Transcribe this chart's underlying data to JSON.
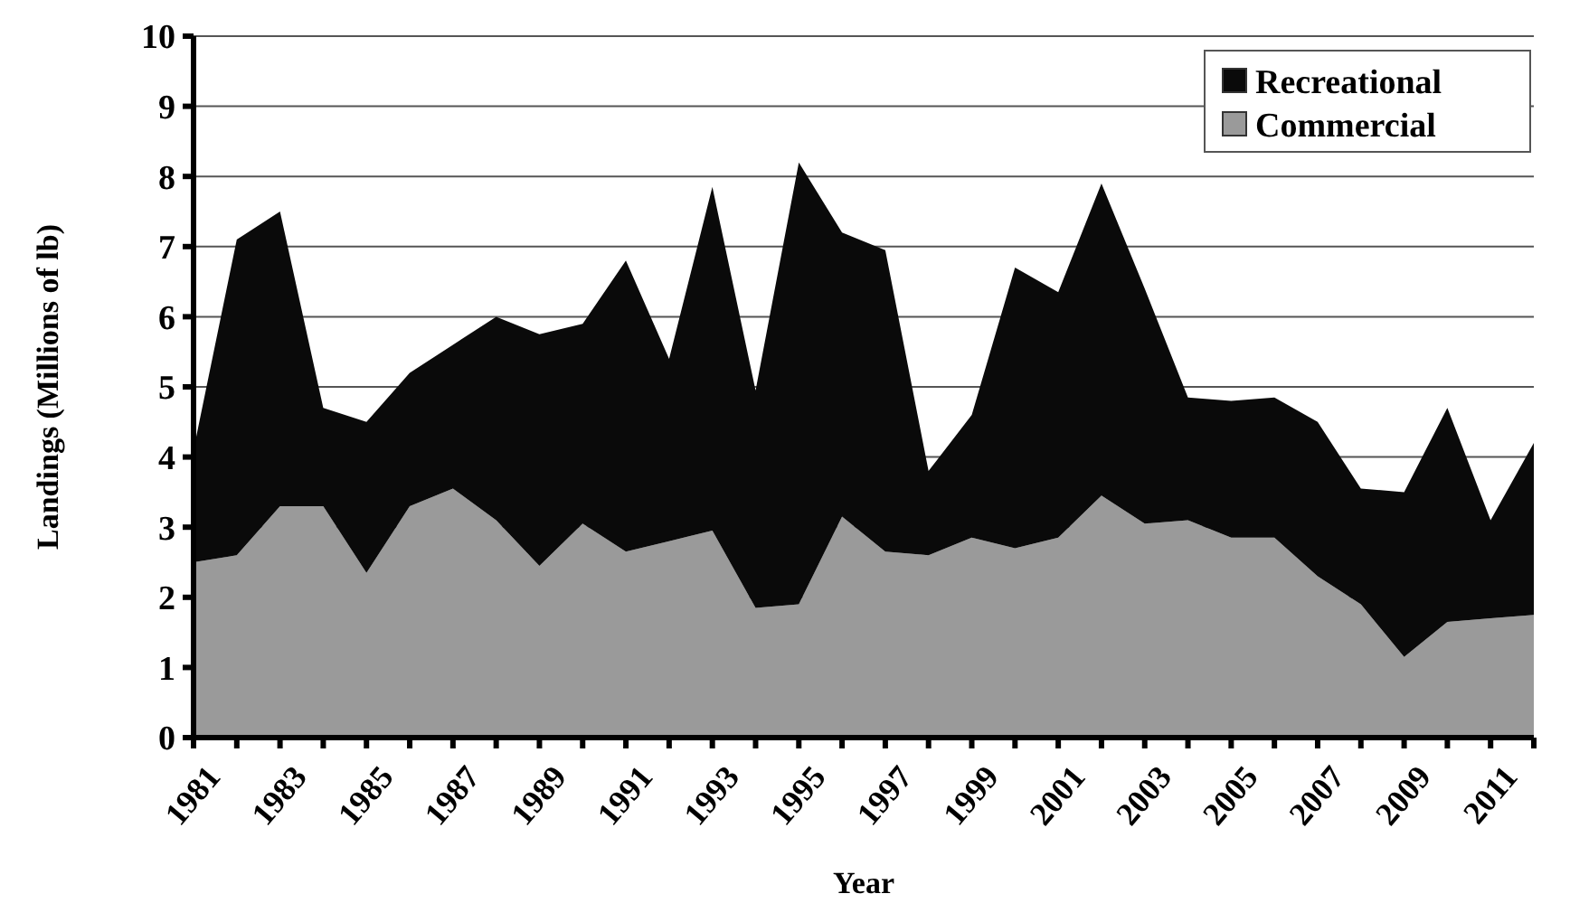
{
  "chart_data": {
    "type": "area",
    "stacked": true,
    "xlabel": "Year",
    "ylabel": "Landings (Millions of lb)",
    "categories": [
      "1981",
      null,
      "1983",
      null,
      "1985",
      null,
      "1987",
      null,
      "1989",
      null,
      "1991",
      null,
      "1993",
      null,
      "1995",
      null,
      "1997",
      null,
      "1999",
      null,
      "2001",
      null,
      "2003",
      null,
      "2005",
      null,
      "2007",
      null,
      "2009",
      null,
      "2011",
      null
    ],
    "series": [
      {
        "name": "Commercial",
        "color": "#9a9a9a",
        "values": [
          2.5,
          2.6,
          3.3,
          3.3,
          2.35,
          3.3,
          3.55,
          3.1,
          2.45,
          3.05,
          2.65,
          2.8,
          2.95,
          1.85,
          1.9,
          3.15,
          2.65,
          2.6,
          2.85,
          2.7,
          2.85,
          3.45,
          3.05,
          3.1,
          2.85,
          2.85,
          2.3,
          1.9,
          1.15,
          1.65,
          1.7,
          1.75
        ]
      },
      {
        "name": "Recreational",
        "color": "#0a0a0a",
        "values": [
          1.6,
          4.5,
          4.2,
          1.4,
          2.15,
          1.9,
          2.05,
          2.9,
          3.3,
          2.85,
          4.15,
          2.6,
          4.9,
          3.1,
          6.3,
          4.05,
          4.3,
          1.2,
          1.75,
          4.0,
          3.5,
          4.45,
          3.35,
          1.75,
          1.95,
          2.0,
          2.2,
          1.65,
          2.35,
          3.05,
          1.4,
          2.45
        ]
      }
    ],
    "ylim": [
      0,
      10
    ],
    "yticks": [
      0,
      1,
      2,
      3,
      4,
      5,
      6,
      7,
      8,
      9,
      10
    ],
    "grid": "y",
    "legend": "top right"
  }
}
